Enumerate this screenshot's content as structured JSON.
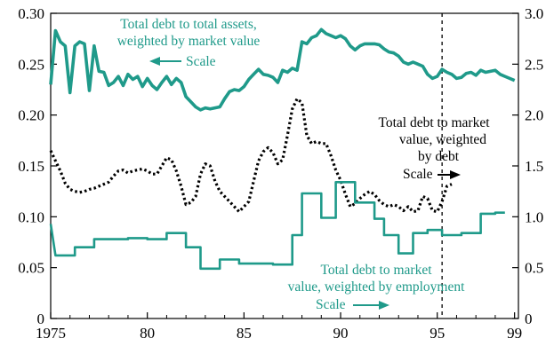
{
  "chart_data": {
    "type": "line",
    "x_range": [
      1975,
      1999.2
    ],
    "x_ticks": [
      1975,
      1980,
      1985,
      1990,
      1995,
      1999
    ],
    "x_tick_labels": [
      "1975",
      "80",
      "85",
      "90",
      "95",
      "99"
    ],
    "y_left": {
      "range": [
        0,
        0.3
      ],
      "ticks": [
        0,
        0.05,
        0.1,
        0.15,
        0.2,
        0.25,
        0.3
      ],
      "tick_labels": [
        "0",
        "0.05",
        "0.10",
        "0.15",
        "0.20",
        "0.25",
        "0.30"
      ]
    },
    "y_right": {
      "range": [
        0,
        3.0
      ],
      "ticks": [
        0,
        0.5,
        1.0,
        1.5,
        2.0,
        2.5,
        3.0
      ],
      "tick_labels": [
        "0",
        "0.5",
        "1.0",
        "1.5",
        "2.0",
        "2.5",
        "3.0"
      ]
    },
    "reference_line_x": 1995.25,
    "series": [
      {
        "name": "Total debt to total assets, weighted by market value",
        "axis": "left",
        "style": "solid",
        "color": "#1f9a8a",
        "points": [
          [
            1975.0,
            0.23
          ],
          [
            1975.25,
            0.283
          ],
          [
            1975.5,
            0.272
          ],
          [
            1975.75,
            0.268
          ],
          [
            1976.0,
            0.222
          ],
          [
            1976.25,
            0.268
          ],
          [
            1976.5,
            0.272
          ],
          [
            1976.75,
            0.27
          ],
          [
            1977.0,
            0.224
          ],
          [
            1977.25,
            0.268
          ],
          [
            1977.5,
            0.243
          ],
          [
            1977.75,
            0.242
          ],
          [
            1978.0,
            0.229
          ],
          [
            1978.25,
            0.232
          ],
          [
            1978.5,
            0.238
          ],
          [
            1978.75,
            0.229
          ],
          [
            1979.0,
            0.24
          ],
          [
            1979.25,
            0.235
          ],
          [
            1979.5,
            0.238
          ],
          [
            1979.75,
            0.228
          ],
          [
            1980.0,
            0.236
          ],
          [
            1980.25,
            0.229
          ],
          [
            1980.5,
            0.225
          ],
          [
            1980.75,
            0.232
          ],
          [
            1981.0,
            0.238
          ],
          [
            1981.25,
            0.23
          ],
          [
            1981.5,
            0.236
          ],
          [
            1981.75,
            0.232
          ],
          [
            1982.0,
            0.218
          ],
          [
            1982.25,
            0.213
          ],
          [
            1982.5,
            0.208
          ],
          [
            1982.75,
            0.205
          ],
          [
            1983.0,
            0.207
          ],
          [
            1983.25,
            0.206
          ],
          [
            1983.5,
            0.207
          ],
          [
            1983.75,
            0.208
          ],
          [
            1984.0,
            0.216
          ],
          [
            1984.25,
            0.223
          ],
          [
            1984.5,
            0.225
          ],
          [
            1984.75,
            0.224
          ],
          [
            1985.0,
            0.228
          ],
          [
            1985.25,
            0.235
          ],
          [
            1985.5,
            0.24
          ],
          [
            1985.75,
            0.245
          ],
          [
            1986.0,
            0.24
          ],
          [
            1986.25,
            0.239
          ],
          [
            1986.5,
            0.237
          ],
          [
            1986.75,
            0.232
          ],
          [
            1987.0,
            0.244
          ],
          [
            1987.25,
            0.242
          ],
          [
            1987.5,
            0.246
          ],
          [
            1987.75,
            0.244
          ],
          [
            1988.0,
            0.272
          ],
          [
            1988.25,
            0.27
          ],
          [
            1988.5,
            0.276
          ],
          [
            1988.75,
            0.278
          ],
          [
            1989.0,
            0.284
          ],
          [
            1989.25,
            0.28
          ],
          [
            1989.5,
            0.278
          ],
          [
            1989.75,
            0.276
          ],
          [
            1990.0,
            0.278
          ],
          [
            1990.25,
            0.275
          ],
          [
            1990.5,
            0.268
          ],
          [
            1990.75,
            0.264
          ],
          [
            1991.0,
            0.268
          ],
          [
            1991.25,
            0.27
          ],
          [
            1991.5,
            0.27
          ],
          [
            1991.75,
            0.27
          ],
          [
            1992.0,
            0.269
          ],
          [
            1992.25,
            0.265
          ],
          [
            1992.5,
            0.262
          ],
          [
            1992.75,
            0.261
          ],
          [
            1993.0,
            0.258
          ],
          [
            1993.25,
            0.252
          ],
          [
            1993.5,
            0.25
          ],
          [
            1993.75,
            0.252
          ],
          [
            1994.0,
            0.25
          ],
          [
            1994.25,
            0.248
          ],
          [
            1994.5,
            0.24
          ],
          [
            1994.75,
            0.236
          ],
          [
            1995.0,
            0.238
          ],
          [
            1995.25,
            0.245
          ],
          [
            1995.5,
            0.242
          ],
          [
            1995.75,
            0.24
          ],
          [
            1996.0,
            0.236
          ],
          [
            1996.25,
            0.237
          ],
          [
            1996.5,
            0.241
          ],
          [
            1996.75,
            0.242
          ],
          [
            1997.0,
            0.239
          ],
          [
            1997.25,
            0.244
          ],
          [
            1997.5,
            0.242
          ],
          [
            1997.75,
            0.243
          ],
          [
            1998.0,
            0.244
          ],
          [
            1998.25,
            0.24
          ],
          [
            1998.5,
            0.238
          ],
          [
            1998.75,
            0.236
          ],
          [
            1999.0,
            0.234
          ]
        ]
      },
      {
        "name": "Total debt to market value, weighted by debt",
        "axis": "right",
        "style": "dotted",
        "color": "#000000",
        "points": [
          [
            1975.0,
            1.65
          ],
          [
            1975.25,
            1.55
          ],
          [
            1975.5,
            1.45
          ],
          [
            1975.75,
            1.33
          ],
          [
            1976.0,
            1.27
          ],
          [
            1976.25,
            1.25
          ],
          [
            1976.5,
            1.24
          ],
          [
            1976.75,
            1.25
          ],
          [
            1977.0,
            1.27
          ],
          [
            1977.25,
            1.28
          ],
          [
            1977.5,
            1.3
          ],
          [
            1977.75,
            1.32
          ],
          [
            1978.0,
            1.34
          ],
          [
            1978.25,
            1.4
          ],
          [
            1978.5,
            1.45
          ],
          [
            1978.75,
            1.46
          ],
          [
            1979.0,
            1.43
          ],
          [
            1979.25,
            1.45
          ],
          [
            1979.5,
            1.46
          ],
          [
            1979.75,
            1.47
          ],
          [
            1980.0,
            1.45
          ],
          [
            1980.25,
            1.42
          ],
          [
            1980.5,
            1.42
          ],
          [
            1980.75,
            1.5
          ],
          [
            1981.0,
            1.58
          ],
          [
            1981.25,
            1.56
          ],
          [
            1981.5,
            1.45
          ],
          [
            1981.75,
            1.3
          ],
          [
            1982.0,
            1.12
          ],
          [
            1982.25,
            1.14
          ],
          [
            1982.5,
            1.2
          ],
          [
            1982.75,
            1.42
          ],
          [
            1983.0,
            1.52
          ],
          [
            1983.25,
            1.5
          ],
          [
            1983.5,
            1.35
          ],
          [
            1983.75,
            1.25
          ],
          [
            1984.0,
            1.2
          ],
          [
            1984.25,
            1.15
          ],
          [
            1984.5,
            1.1
          ],
          [
            1984.75,
            1.05
          ],
          [
            1985.0,
            1.1
          ],
          [
            1985.25,
            1.15
          ],
          [
            1985.5,
            1.35
          ],
          [
            1985.75,
            1.55
          ],
          [
            1986.0,
            1.64
          ],
          [
            1986.25,
            1.68
          ],
          [
            1986.5,
            1.63
          ],
          [
            1986.75,
            1.52
          ],
          [
            1987.0,
            1.56
          ],
          [
            1987.25,
            1.8
          ],
          [
            1987.5,
            2.06
          ],
          [
            1987.75,
            2.16
          ],
          [
            1988.0,
            2.12
          ],
          [
            1988.25,
            1.8
          ],
          [
            1988.5,
            1.72
          ],
          [
            1988.75,
            1.74
          ],
          [
            1989.0,
            1.72
          ],
          [
            1989.25,
            1.72
          ],
          [
            1989.5,
            1.6
          ],
          [
            1989.75,
            1.46
          ],
          [
            1990.0,
            1.36
          ],
          [
            1990.25,
            1.22
          ],
          [
            1990.5,
            1.1
          ],
          [
            1990.75,
            1.13
          ],
          [
            1991.0,
            1.18
          ],
          [
            1991.25,
            1.22
          ],
          [
            1991.5,
            1.25
          ],
          [
            1991.75,
            1.22
          ],
          [
            1992.0,
            1.16
          ],
          [
            1992.25,
            1.12
          ],
          [
            1992.5,
            1.1
          ],
          [
            1992.75,
            1.12
          ],
          [
            1993.0,
            1.1
          ],
          [
            1993.25,
            1.06
          ],
          [
            1993.5,
            1.1
          ],
          [
            1993.75,
            1.05
          ],
          [
            1994.0,
            1.06
          ],
          [
            1994.25,
            1.2
          ],
          [
            1994.5,
            1.18
          ],
          [
            1994.75,
            1.06
          ],
          [
            1995.0,
            1.05
          ],
          [
            1995.25,
            1.15
          ],
          [
            1995.5,
            1.3
          ],
          [
            1995.75,
            1.32
          ]
        ]
      },
      {
        "name": "Total debt to market value, weighted by employment",
        "axis": "right",
        "style": "solid",
        "color": "#1f9a8a",
        "points": [
          [
            1975.0,
            0.93
          ],
          [
            1975.25,
            0.62
          ],
          [
            1976.25,
            0.62
          ],
          [
            1976.25,
            0.7
          ],
          [
            1977.25,
            0.7
          ],
          [
            1977.25,
            0.78
          ],
          [
            1979.0,
            0.78
          ],
          [
            1979.0,
            0.79
          ],
          [
            1980.0,
            0.79
          ],
          [
            1980.0,
            0.78
          ],
          [
            1981.0,
            0.78
          ],
          [
            1981.0,
            0.84
          ],
          [
            1982.0,
            0.84
          ],
          [
            1982.0,
            0.7
          ],
          [
            1982.75,
            0.7
          ],
          [
            1982.75,
            0.49
          ],
          [
            1983.75,
            0.49
          ],
          [
            1983.75,
            0.58
          ],
          [
            1984.75,
            0.58
          ],
          [
            1984.75,
            0.54
          ],
          [
            1986.5,
            0.54
          ],
          [
            1986.5,
            0.53
          ],
          [
            1987.5,
            0.53
          ],
          [
            1987.5,
            0.82
          ],
          [
            1988.0,
            0.82
          ],
          [
            1988.0,
            1.23
          ],
          [
            1989.0,
            1.23
          ],
          [
            1989.0,
            0.99
          ],
          [
            1989.75,
            0.99
          ],
          [
            1989.75,
            1.34
          ],
          [
            1990.75,
            1.34
          ],
          [
            1990.75,
            1.14
          ],
          [
            1991.75,
            1.14
          ],
          [
            1991.75,
            0.98
          ],
          [
            1992.25,
            0.98
          ],
          [
            1992.25,
            0.82
          ],
          [
            1993.0,
            0.82
          ],
          [
            1993.0,
            0.64
          ],
          [
            1993.75,
            0.64
          ],
          [
            1993.75,
            0.84
          ],
          [
            1994.5,
            0.84
          ],
          [
            1994.5,
            0.87
          ],
          [
            1995.25,
            0.87
          ],
          [
            1995.25,
            0.82
          ],
          [
            1996.25,
            0.82
          ],
          [
            1996.25,
            0.84
          ],
          [
            1997.25,
            0.84
          ],
          [
            1997.25,
            1.03
          ],
          [
            1998.0,
            1.03
          ],
          [
            1998.0,
            1.04
          ],
          [
            1998.5,
            1.04
          ]
        ]
      }
    ]
  },
  "annotations": {
    "debt_assets": {
      "line1": "Total debt to total assets,",
      "line2": "weighted by market value",
      "scale": "Scale"
    },
    "debt_debt": {
      "line1": "Total debt to market",
      "line2": "value, weighted",
      "line3": "by debt",
      "scale": "Scale"
    },
    "debt_employment": {
      "line1": "Total debt to market",
      "line2": "value, weighted by employment",
      "scale": "Scale"
    }
  }
}
